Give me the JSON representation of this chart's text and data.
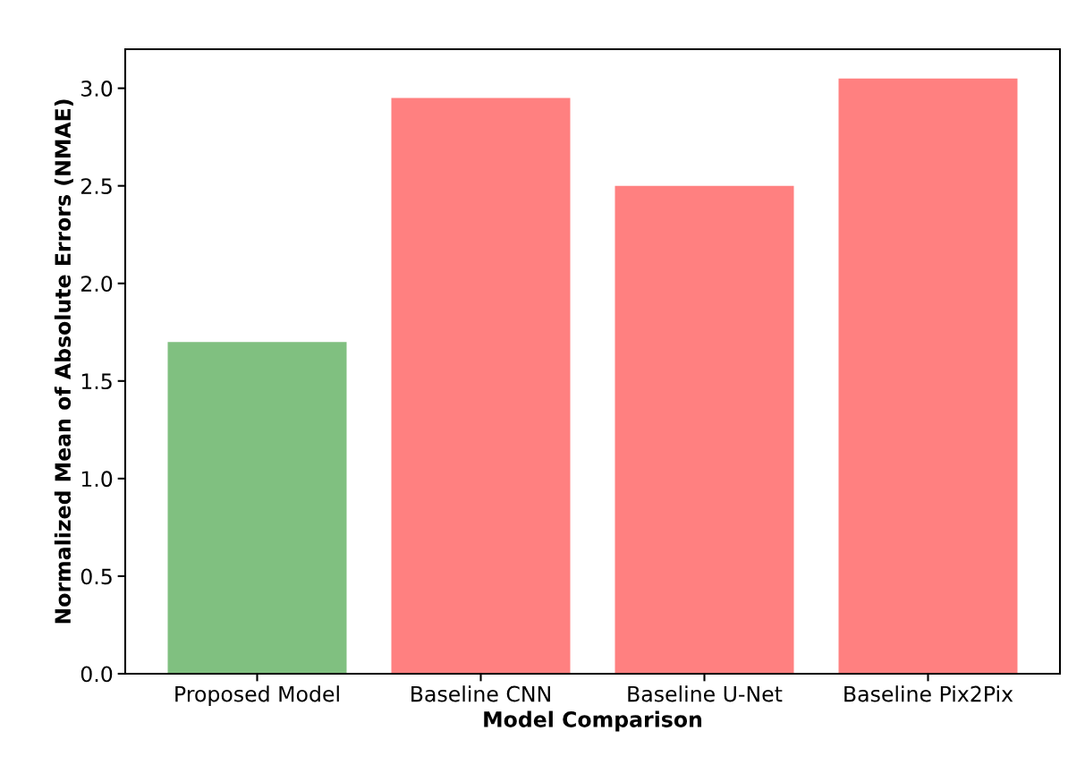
{
  "chart_data": {
    "type": "bar",
    "xlabel": "Model Comparison",
    "ylabel": "Normalized Mean of Absolute Errors (NMAE)",
    "categories": [
      "Proposed Model",
      "Baseline CNN",
      "Baseline U-Net",
      "Baseline Pix2Pix"
    ],
    "values": [
      1.7,
      2.95,
      2.5,
      3.05
    ],
    "colors": [
      "#80c080",
      "#ff8080",
      "#ff8080",
      "#ff8080"
    ],
    "ylim": [
      0,
      3.2
    ],
    "yticks": [
      {
        "value": 0,
        "label": "0.0"
      },
      {
        "value": 0.5,
        "label": "0.5"
      },
      {
        "value": 1,
        "label": "1.0"
      },
      {
        "value": 1.5,
        "label": "1.5"
      },
      {
        "value": 2,
        "label": "2.0"
      },
      {
        "value": 2.5,
        "label": "2.5"
      },
      {
        "value": 3,
        "label": "3.0"
      }
    ],
    "grid": false
  }
}
